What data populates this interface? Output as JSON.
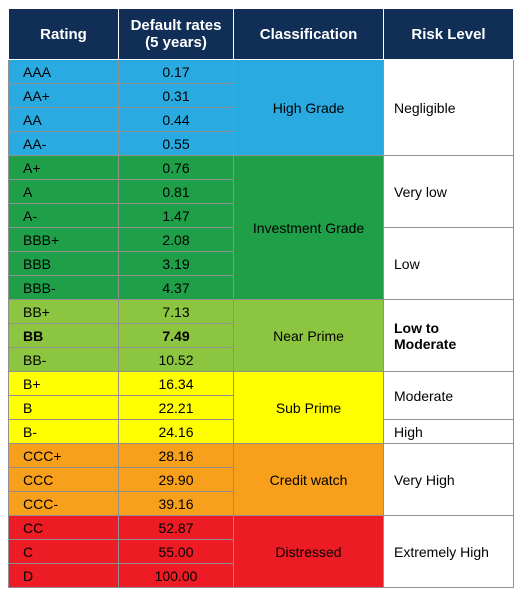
{
  "headers": {
    "rating": "Rating",
    "default_rates": "Default rates (5 years)",
    "classification": "Classification",
    "risk_level": "Risk Level"
  },
  "colors": {
    "header_bg": "#102e56",
    "header_text": "#ffffff",
    "high_grade": "#29abe2",
    "investment_grade": "#1fa048",
    "near_prime": "#8cc540",
    "sub_prime": "#ffff00",
    "credit_watch": "#f8a01b",
    "distressed": "#ed1c24",
    "risk_bg": "#ffffff",
    "cell_border": "#909090"
  },
  "rows": [
    {
      "rating": "AAA",
      "rate": "0.17"
    },
    {
      "rating": "AA+",
      "rate": "0.31"
    },
    {
      "rating": "AA",
      "rate": "0.44"
    },
    {
      "rating": "AA-",
      "rate": "0.55"
    },
    {
      "rating": "A+",
      "rate": "0.76"
    },
    {
      "rating": "A",
      "rate": "0.81"
    },
    {
      "rating": "A-",
      "rate": "1.47"
    },
    {
      "rating": "BBB+",
      "rate": "2.08"
    },
    {
      "rating": "BBB",
      "rate": "3.19"
    },
    {
      "rating": "BBB-",
      "rate": "4.37"
    },
    {
      "rating": "BB+",
      "rate": "7.13"
    },
    {
      "rating": "BB",
      "rate": "7.49",
      "bold": true
    },
    {
      "rating": "BB-",
      "rate": "10.52"
    },
    {
      "rating": "B+",
      "rate": "16.34"
    },
    {
      "rating": "B",
      "rate": "22.21"
    },
    {
      "rating": "B-",
      "rate": "24.16"
    },
    {
      "rating": "CCC+",
      "rate": "28.16"
    },
    {
      "rating": "CCC",
      "rate": "29.90"
    },
    {
      "rating": "CCC-",
      "rate": "39.16"
    },
    {
      "rating": "CC",
      "rate": "52.87"
    },
    {
      "rating": "C",
      "rate": "55.00"
    },
    {
      "rating": "D",
      "rate": "100.00"
    }
  ],
  "classifications": [
    {
      "label": "High Grade",
      "start": 0,
      "span": 4,
      "color_key": "high_grade"
    },
    {
      "label": "Investment Grade",
      "start": 4,
      "span": 6,
      "color_key": "investment_grade"
    },
    {
      "label": "Near Prime",
      "start": 10,
      "span": 3,
      "color_key": "near_prime",
      "bold": true
    },
    {
      "label": "Sub Prime",
      "start": 13,
      "span": 3,
      "color_key": "sub_prime"
    },
    {
      "label": "Credit watch",
      "start": 16,
      "span": 3,
      "color_key": "credit_watch"
    },
    {
      "label": "Distressed",
      "start": 19,
      "span": 3,
      "color_key": "distressed"
    }
  ],
  "risk_levels": [
    {
      "label": "Negligible",
      "start": 0,
      "span": 4
    },
    {
      "label": "Very low",
      "start": 4,
      "span": 3
    },
    {
      "label": "Low",
      "start": 7,
      "span": 3
    },
    {
      "label": "Low to Moderate",
      "start": 10,
      "span": 3,
      "bold": true
    },
    {
      "label": "Moderate",
      "start": 13,
      "span": 2
    },
    {
      "label": "High",
      "start": 15,
      "span": 1
    },
    {
      "label": "Very High",
      "start": 16,
      "span": 3
    },
    {
      "label": "Extremely High",
      "start": 19,
      "span": 3
    }
  ]
}
